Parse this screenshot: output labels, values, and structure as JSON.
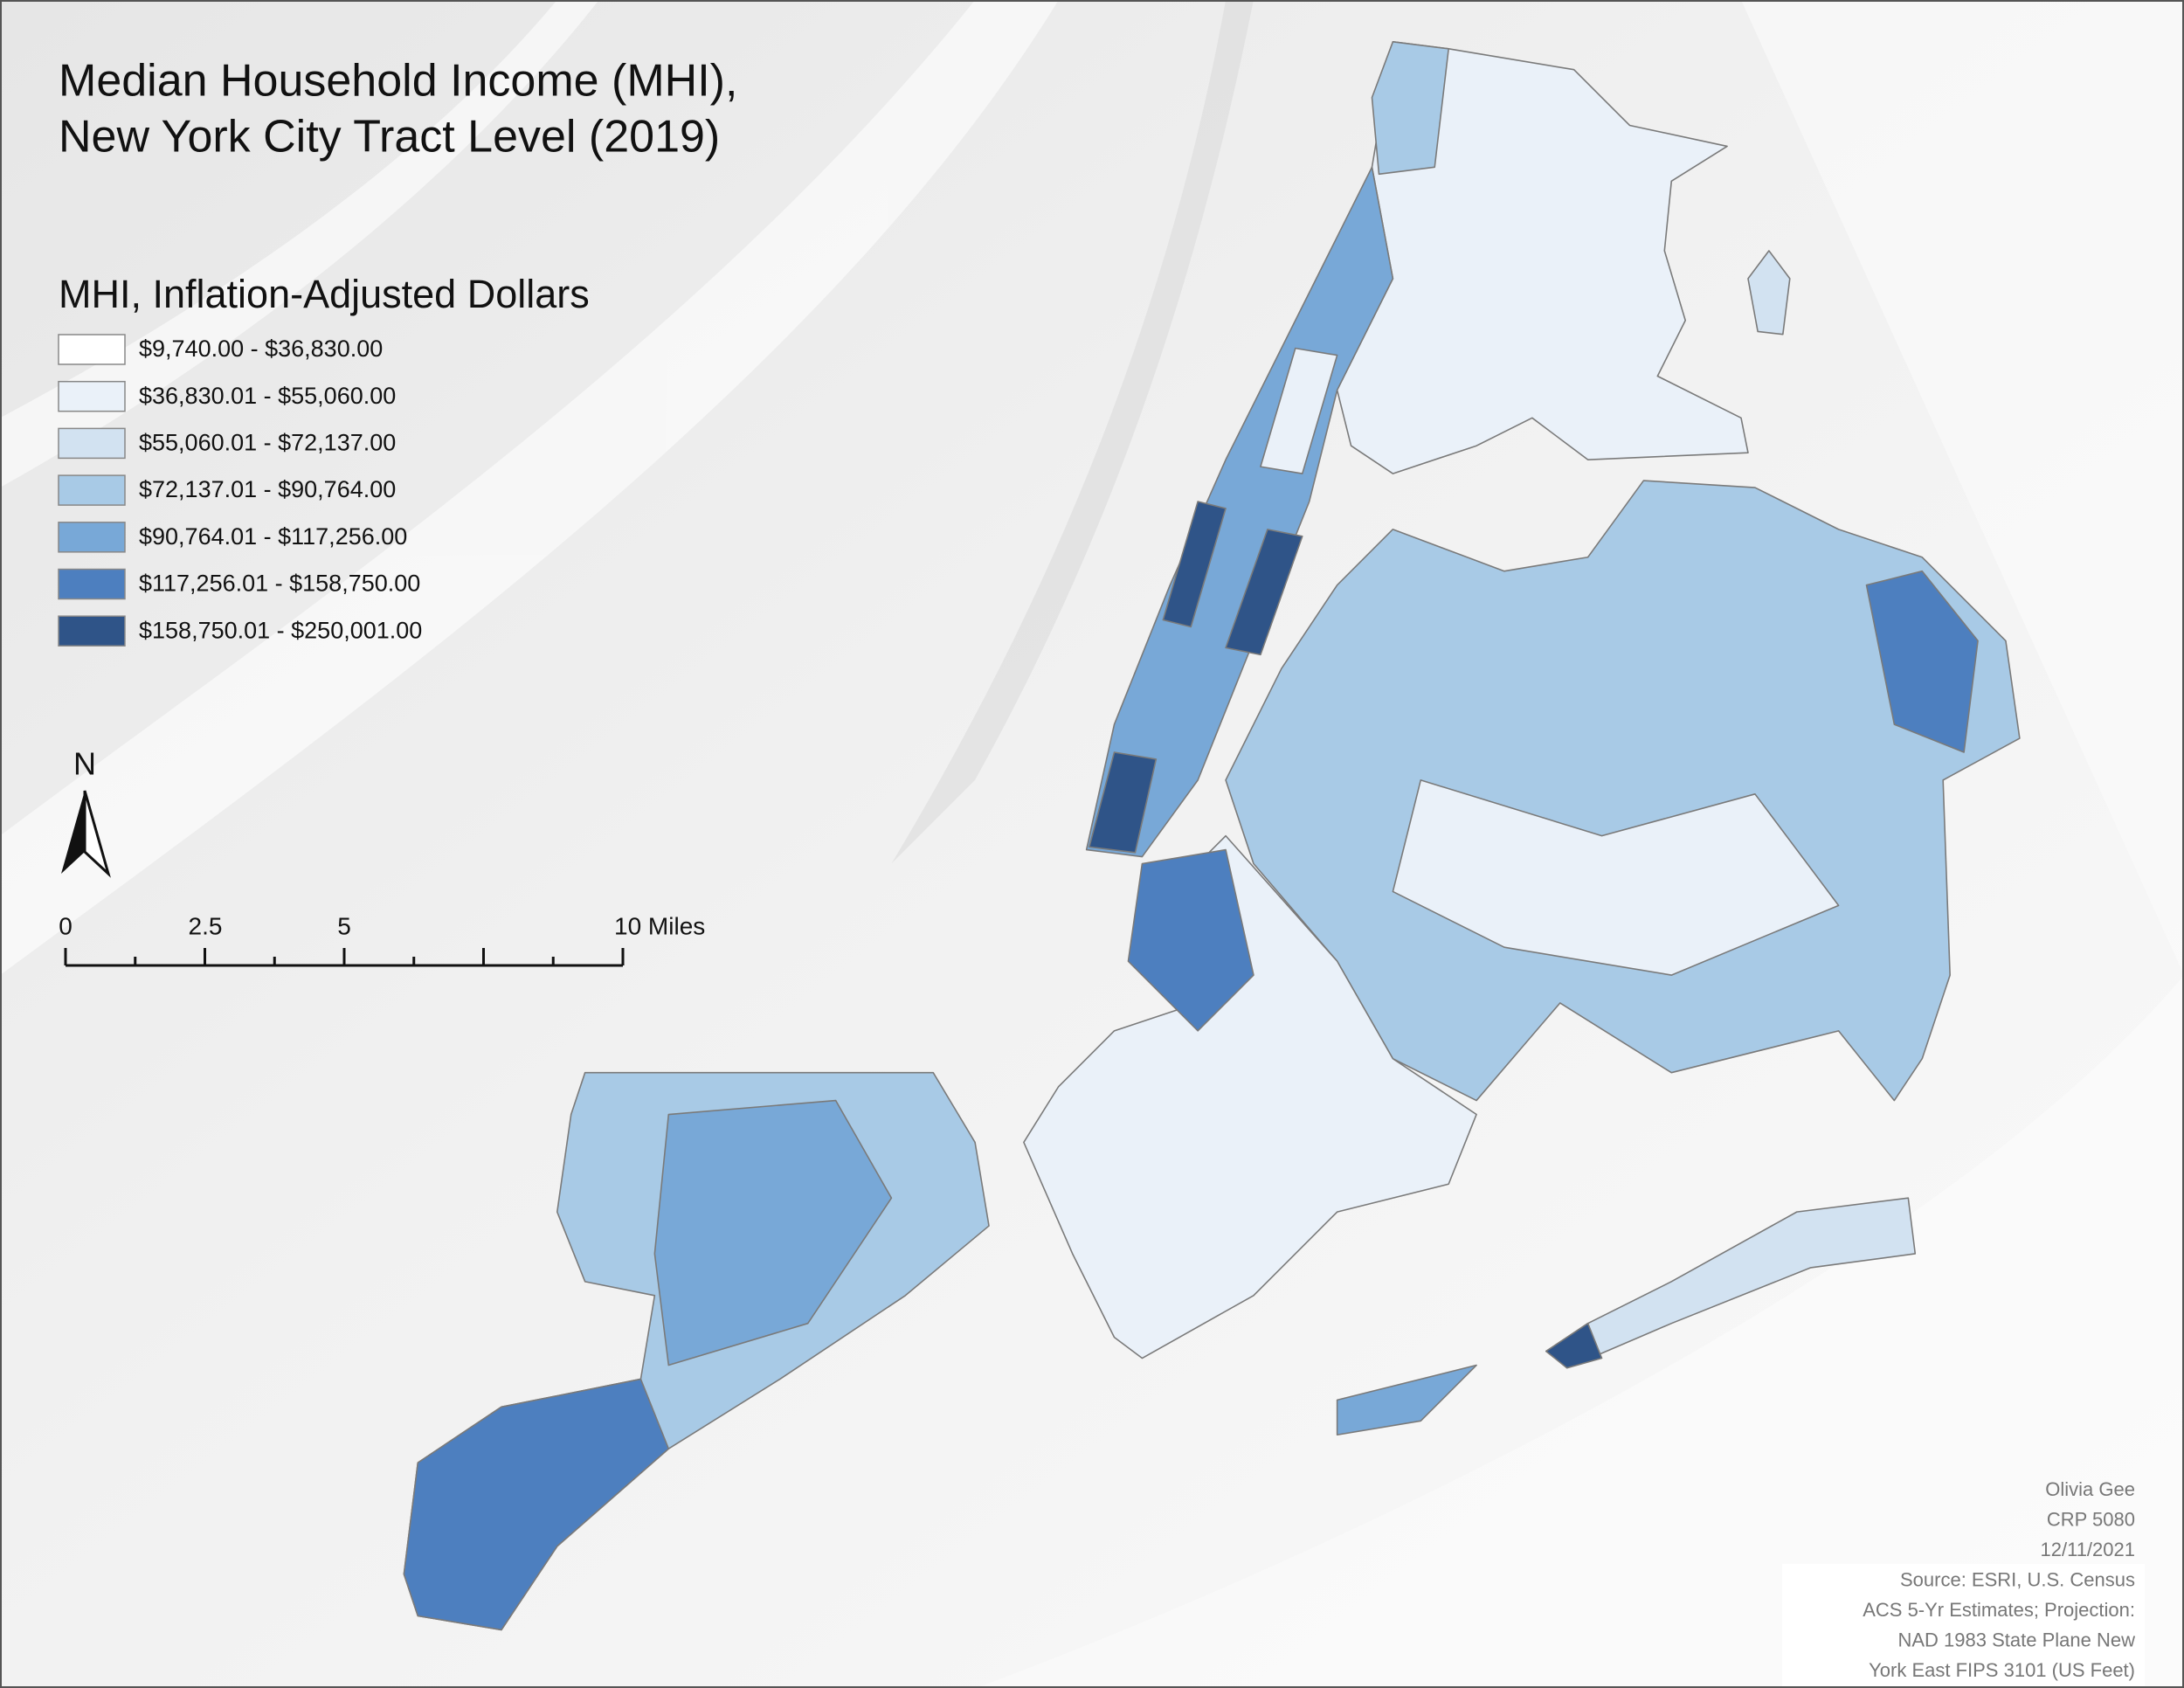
{
  "title": [
    "Median Household Income (MHI),",
    "New York City Tract Level (2019)"
  ],
  "legend": {
    "title": "MHI, Inflation-Adjusted Dollars",
    "items": [
      {
        "label": "$9,740.00 - $36,830.00",
        "color": "#ffffff"
      },
      {
        "label": "$36,830.01 - $55,060.00",
        "color": "#eaf1f9"
      },
      {
        "label": "$55,060.01 - $72,137.00",
        "color": "#d2e2f1"
      },
      {
        "label": "$72,137.01 - $90,764.00",
        "color": "#a8cae6"
      },
      {
        "label": "$90,764.01 - $117,256.00",
        "color": "#78a8d7"
      },
      {
        "label": "$117,256.01 - $158,750.00",
        "color": "#4d7fbf"
      },
      {
        "label": "$158,750.01 - $250,001.00",
        "color": "#2f5488"
      }
    ]
  },
  "north_arrow": "N",
  "scale_bar": {
    "labels": [
      "0",
      "2.5",
      "5",
      "10 Miles"
    ]
  },
  "credits": [
    "Olivia Gee",
    "CRP 5080",
    "12/11/2021",
    "Source: ESRI,  U.S. Census",
    "ACS 5-Yr Estimates; Projection:",
    "NAD 1983 State Plane New",
    "York East FIPS 3101 (US Feet)"
  ]
}
